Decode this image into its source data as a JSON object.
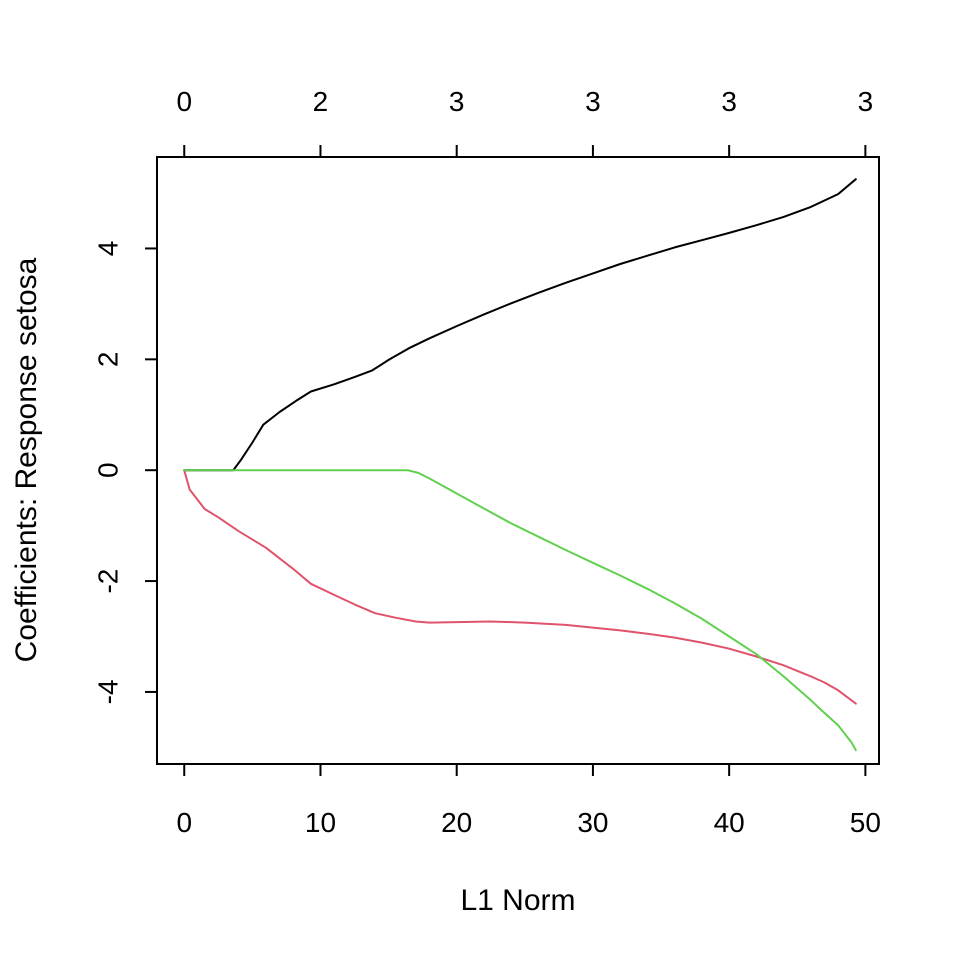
{
  "chart_data": {
    "type": "line",
    "title": "",
    "xlabel": "L1 Norm",
    "ylabel": "Coefficients: Response setosa",
    "xlim": [
      -2,
      51
    ],
    "ylim": [
      -5.3,
      5.65
    ],
    "x_ticks": [
      0,
      10,
      20,
      30,
      40,
      50
    ],
    "y_ticks": [
      -4,
      -2,
      0,
      2,
      4
    ],
    "top_axis": {
      "positions": [
        0,
        10,
        20,
        30,
        40,
        50
      ],
      "labels": [
        "0",
        "2",
        "3",
        "3",
        "3",
        "3"
      ]
    },
    "grid": false,
    "legend": "none",
    "series": [
      {
        "color": "#000000",
        "points": [
          [
            0,
            0
          ],
          [
            3.6,
            0
          ],
          [
            4.2,
            0.2
          ],
          [
            5,
            0.5
          ],
          [
            5.8,
            0.82
          ],
          [
            7,
            1.05
          ],
          [
            8.2,
            1.25
          ],
          [
            9.3,
            1.42
          ],
          [
            11,
            1.55
          ],
          [
            12.5,
            1.68
          ],
          [
            13.8,
            1.8
          ],
          [
            15,
            1.99
          ],
          [
            16.5,
            2.2
          ],
          [
            18,
            2.38
          ],
          [
            20,
            2.6
          ],
          [
            22,
            2.81
          ],
          [
            24,
            3.01
          ],
          [
            26,
            3.2
          ],
          [
            28,
            3.38
          ],
          [
            30,
            3.55
          ],
          [
            32,
            3.72
          ],
          [
            34,
            3.87
          ],
          [
            36,
            4.02
          ],
          [
            38,
            4.15
          ],
          [
            40,
            4.28
          ],
          [
            42,
            4.42
          ],
          [
            44,
            4.57
          ],
          [
            46,
            4.75
          ],
          [
            48,
            4.98
          ],
          [
            49.3,
            5.25
          ]
        ]
      },
      {
        "color": "#DF536B",
        "points": [
          [
            0,
            0
          ],
          [
            0.4,
            -0.35
          ],
          [
            1.5,
            -0.7
          ],
          [
            2.5,
            -0.85
          ],
          [
            4,
            -1.1
          ],
          [
            6,
            -1.4
          ],
          [
            8,
            -1.78
          ],
          [
            9.3,
            -2.05
          ],
          [
            11,
            -2.25
          ],
          [
            12.5,
            -2.42
          ],
          [
            14,
            -2.58
          ],
          [
            15.5,
            -2.66
          ],
          [
            17,
            -2.73
          ],
          [
            18,
            -2.75
          ],
          [
            20,
            -2.74
          ],
          [
            22.5,
            -2.73
          ],
          [
            25,
            -2.75
          ],
          [
            28,
            -2.79
          ],
          [
            30,
            -2.84
          ],
          [
            32,
            -2.89
          ],
          [
            34,
            -2.95
          ],
          [
            36,
            -3.02
          ],
          [
            38,
            -3.11
          ],
          [
            40,
            -3.22
          ],
          [
            42,
            -3.36
          ],
          [
            44,
            -3.52
          ],
          [
            46,
            -3.72
          ],
          [
            47,
            -3.83
          ],
          [
            48,
            -3.97
          ],
          [
            49.3,
            -4.21
          ]
        ]
      },
      {
        "color": "#61D04F",
        "points": [
          [
            0,
            0
          ],
          [
            16.4,
            0
          ],
          [
            17.2,
            -0.05
          ],
          [
            18,
            -0.15
          ],
          [
            20,
            -0.42
          ],
          [
            22,
            -0.69
          ],
          [
            24,
            -0.96
          ],
          [
            26,
            -1.2
          ],
          [
            28,
            -1.44
          ],
          [
            30,
            -1.67
          ],
          [
            32,
            -1.9
          ],
          [
            34,
            -2.14
          ],
          [
            36,
            -2.4
          ],
          [
            38,
            -2.68
          ],
          [
            40,
            -3.0
          ],
          [
            42,
            -3.32
          ],
          [
            44,
            -3.72
          ],
          [
            46,
            -4.15
          ],
          [
            47,
            -4.38
          ],
          [
            48,
            -4.6
          ],
          [
            49,
            -4.92
          ],
          [
            49.3,
            -5.05
          ]
        ]
      }
    ]
  }
}
